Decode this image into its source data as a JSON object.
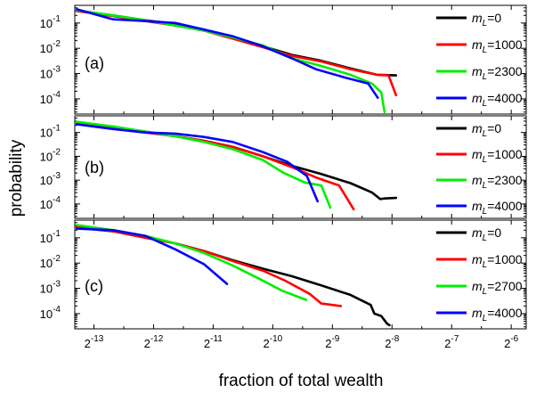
{
  "chart_data": {
    "type": "line",
    "title": "",
    "xlabel": "fraction of total wealth",
    "ylabel": "probability",
    "x_scale": "log2",
    "y_scale": "log10",
    "x_ticks": [
      {
        "exp": "-13",
        "value": 0.0001220703125
      },
      {
        "exp": "-12",
        "value": 0.000244140625
      },
      {
        "exp": "-11",
        "value": 0.00048828125
      },
      {
        "exp": "-10",
        "value": 0.0009765625
      },
      {
        "exp": "-9",
        "value": 0.001953125
      },
      {
        "exp": "-8",
        "value": 0.00390625
      },
      {
        "exp": "-7",
        "value": 0.0078125
      },
      {
        "exp": "-6",
        "value": 0.015625
      }
    ],
    "x_tick_base": "2",
    "xlim": [
      9.77e-05,
      0.0186
    ],
    "y_ticks": [
      {
        "exp": "-4",
        "value": 0.0001
      },
      {
        "exp": "-3",
        "value": 0.001
      },
      {
        "exp": "-2",
        "value": 0.01
      },
      {
        "exp": "-1",
        "value": 0.1
      }
    ],
    "y_tick_base": "10",
    "ylim": [
      2.5e-05,
      0.5
    ],
    "legend_position": "right",
    "panels": [
      {
        "label": "(a)",
        "series": [
          {
            "legend_base": "m",
            "legend_sub": "L",
            "legend_value": "=0",
            "color": "#000000",
            "x": [
              0.0001,
              0.0001526,
              0.0002214,
              0.0003144,
              0.0004392,
              0.0006134,
              0.000871,
              0.001222,
              0.001716,
              0.00241,
              0.003276,
              0.004096
            ],
            "y": [
              0.3,
              0.2,
              0.13,
              0.09,
              0.055,
              0.025,
              0.012,
              0.0055,
              0.0032,
              0.0016,
              0.0009,
              0.00085
            ]
          },
          {
            "legend_base": "m",
            "legend_sub": "L",
            "legend_value": "=1000",
            "color": "#ff0000",
            "x": [
              0.0001,
              0.0001526,
              0.0002214,
              0.0003144,
              0.0004392,
              0.0006134,
              0.000871,
              0.001222,
              0.001716,
              0.00241,
              0.003276,
              0.003753,
              0.004096
            ],
            "y": [
              0.3,
              0.19,
              0.12,
              0.08,
              0.05,
              0.024,
              0.011,
              0.005,
              0.003,
              0.0015,
              0.0009,
              0.00085,
              0.00014
            ]
          },
          {
            "legend_base": "m",
            "legend_sub": "L",
            "legend_value": "=2300",
            "color": "#00ee00",
            "x": [
              0.0001,
              0.0001526,
              0.0002214,
              0.0003144,
              0.0004392,
              0.0006134,
              0.000871,
              0.001222,
              0.001716,
              0.00241,
              0.003096,
              0.003447,
              0.003582
            ],
            "y": [
              0.32,
              0.2,
              0.13,
              0.08,
              0.05,
              0.027,
              0.013,
              0.004,
              0.002,
              0.0009,
              0.0004,
              0.00018,
              3e-05
            ]
          },
          {
            "legend_base": "m",
            "legend_sub": "L",
            "legend_value": "=4000",
            "color": "#0000ff",
            "x": [
              0.0001,
              0.0001526,
              0.0002214,
              0.0003144,
              0.0004392,
              0.0006134,
              0.000871,
              0.001222,
              0.00161,
              0.00226,
              0.002965,
              0.003311
            ],
            "y": [
              0.35,
              0.14,
              0.12,
              0.1,
              0.055,
              0.03,
              0.012,
              0.004,
              0.0015,
              0.0007,
              0.0004,
              0.00011
            ]
          }
        ]
      },
      {
        "label": "(b)",
        "series": [
          {
            "legend_base": "m",
            "legend_sub": "L",
            "legend_value": "=0",
            "color": "#000000",
            "x": [
              0.0001,
              0.0001526,
              0.0002214,
              0.0003144,
              0.0004392,
              0.0006134,
              0.000871,
              0.001222,
              0.001716,
              0.00241,
              0.0031,
              0.003409,
              0.003581,
              0.004096
            ],
            "y": [
              0.25,
              0.16,
              0.11,
              0.07,
              0.045,
              0.025,
              0.01,
              0.004,
              0.0018,
              0.00075,
              0.0003,
              0.00016,
              0.00017,
              0.00018
            ]
          },
          {
            "legend_base": "m",
            "legend_sub": "L",
            "legend_value": "=1000",
            "color": "#ff0000",
            "x": [
              0.0001,
              0.0001526,
              0.0002214,
              0.0003144,
              0.0004392,
              0.0006134,
              0.000871,
              0.001222,
              0.00161,
              0.00211,
              0.0025
            ],
            "y": [
              0.25,
              0.16,
              0.1,
              0.07,
              0.045,
              0.025,
              0.01,
              0.0035,
              0.0013,
              0.0006,
              6e-05
            ]
          },
          {
            "legend_base": "m",
            "legend_sub": "L",
            "legend_value": "=2300",
            "color": "#00ee00",
            "x": [
              0.0001,
              0.0001526,
              0.0002214,
              0.0003144,
              0.0004392,
              0.0006134,
              0.000871,
              0.00111,
              0.001418,
              0.001718,
              0.001907
            ],
            "y": [
              0.28,
              0.18,
              0.11,
              0.07,
              0.04,
              0.02,
              0.007,
              0.002,
              0.0008,
              0.0006,
              7e-05
            ]
          },
          {
            "legend_base": "m",
            "legend_sub": "L",
            "legend_value": "=4000",
            "color": "#0000ff",
            "x": [
              0.0001,
              0.0001526,
              0.0002214,
              0.0003144,
              0.0004392,
              0.0006134,
              0.000871,
              0.001153,
              0.001452,
              0.001645
            ],
            "y": [
              0.22,
              0.14,
              0.1,
              0.09,
              0.065,
              0.04,
              0.015,
              0.006,
              0.0015,
              0.00013
            ]
          }
        ]
      },
      {
        "label": "(c)",
        "series": [
          {
            "legend_base": "m",
            "legend_sub": "L",
            "legend_value": "=0",
            "color": "#000000",
            "x": [
              0.0001,
              0.0001526,
              0.0002214,
              0.0003144,
              0.0004392,
              0.0006134,
              0.000871,
              0.001222,
              0.001716,
              0.00241,
              0.00305,
              0.003181,
              0.00345,
              0.003686,
              0.003791
            ],
            "y": [
              0.25,
              0.18,
              0.11,
              0.06,
              0.03,
              0.013,
              0.006,
              0.003,
              0.0013,
              0.00055,
              0.00022,
              0.0001,
              8e-05,
              4e-05,
              3.5e-05
            ]
          },
          {
            "legend_base": "m",
            "legend_sub": "L",
            "legend_value": "=1000",
            "color": "#ff0000",
            "x": [
              0.0001,
              0.0001526,
              0.0002214,
              0.0003144,
              0.0004392,
              0.0006134,
              0.000871,
              0.001129,
              0.0015,
              0.001718,
              0.002154
            ],
            "y": [
              0.28,
              0.18,
              0.1,
              0.06,
              0.03,
              0.012,
              0.005,
              0.002,
              0.0006,
              0.00025,
              0.0002
            ]
          },
          {
            "legend_base": "m",
            "legend_sub": "L",
            "legend_value": "=2700",
            "color": "#00ee00",
            "x": [
              0.0001,
              0.0001526,
              0.0002214,
              0.0003144,
              0.0004392,
              0.0006134,
              0.000826,
              0.00109,
              0.00144
            ],
            "y": [
              0.32,
              0.2,
              0.12,
              0.06,
              0.025,
              0.008,
              0.0025,
              0.0008,
              0.00035
            ]
          },
          {
            "legend_base": "m",
            "legend_sub": "L",
            "legend_value": "=4000",
            "color": "#0000ff",
            "x": [
              0.0001,
              0.0001526,
              0.0002214,
              0.0003144,
              0.0004392,
              0.000574
            ],
            "y": [
              0.23,
              0.2,
              0.12,
              0.035,
              0.009,
              0.0015
            ]
          }
        ]
      }
    ]
  }
}
